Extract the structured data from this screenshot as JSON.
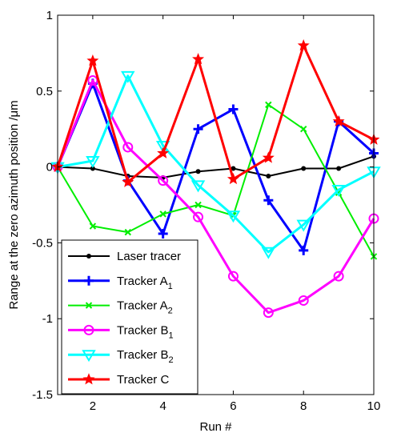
{
  "chart_data": {
    "type": "line",
    "xlabel": "Run #",
    "ylabel": "Range at the zero azimuth position /μm",
    "xlim": [
      1,
      10
    ],
    "ylim": [
      -1.5,
      1
    ],
    "xticks": [
      2,
      4,
      6,
      8,
      10
    ],
    "yticks": [
      -1.5,
      -1,
      -0.5,
      0,
      0.5,
      1
    ],
    "ytick_labels": [
      "-1.5",
      "-1",
      "-0.5",
      "0",
      "0.5",
      "1"
    ],
    "xtick_labels": [
      "2",
      "4",
      "6",
      "8",
      "10"
    ],
    "grid": false,
    "legend_position": "bottom-left",
    "x": [
      1,
      2,
      3,
      4,
      5,
      6,
      7,
      8,
      9,
      10
    ],
    "series": [
      {
        "name": "Laser tracer",
        "label_main": "Laser tracer",
        "label_sub": "",
        "color": "#000000",
        "marker": "dot",
        "values": [
          0,
          -0.01,
          -0.06,
          -0.07,
          -0.03,
          -0.01,
          -0.06,
          -0.01,
          -0.01,
          0.07
        ]
      },
      {
        "name": "Tracker A1",
        "label_main": "Tracker A",
        "label_sub": "1",
        "color": "#0000ff",
        "marker": "plus",
        "values": [
          0,
          0.55,
          -0.09,
          -0.44,
          0.25,
          0.38,
          -0.22,
          -0.55,
          0.3,
          0.09
        ]
      },
      {
        "name": "Tracker A2",
        "label_main": "Tracker A",
        "label_sub": "2",
        "color": "#00ee00",
        "marker": "x",
        "values": [
          0,
          -0.39,
          -0.43,
          -0.31,
          -0.25,
          -0.32,
          0.41,
          0.25,
          -0.17,
          -0.59
        ]
      },
      {
        "name": "Tracker B1",
        "label_main": "Tracker B",
        "label_sub": "1",
        "color": "#ff00ff",
        "marker": "circle",
        "values": [
          0,
          0.57,
          0.13,
          -0.09,
          -0.33,
          -0.72,
          -0.96,
          -0.88,
          -0.72,
          -0.34
        ]
      },
      {
        "name": "Tracker B2",
        "label_main": "Tracker B",
        "label_sub": "2",
        "color": "#00ffff",
        "marker": "triangle",
        "values": [
          0,
          0.04,
          0.6,
          0.14,
          -0.12,
          -0.32,
          -0.56,
          -0.38,
          -0.15,
          -0.03
        ]
      },
      {
        "name": "Tracker C",
        "label_main": "Tracker C",
        "label_sub": "",
        "color": "#ff0000",
        "marker": "star",
        "values": [
          0,
          0.7,
          -0.1,
          0.09,
          0.71,
          -0.08,
          0.06,
          0.8,
          0.3,
          0.18
        ]
      }
    ]
  }
}
